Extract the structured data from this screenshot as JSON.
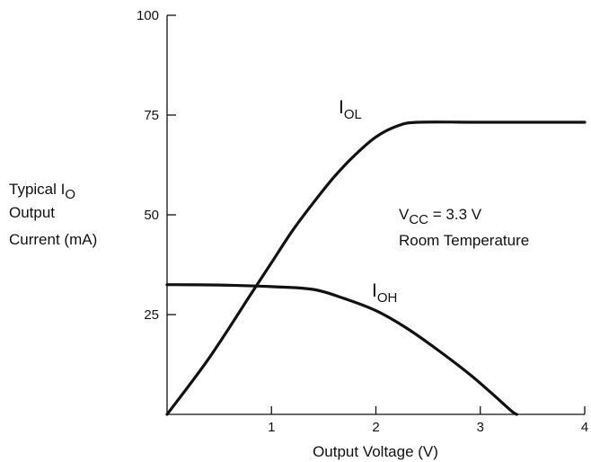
{
  "chart_data": {
    "type": "line",
    "xlabel": "Output Voltage (V)",
    "ylabel_lines": [
      {
        "main": "Typical I",
        "sub": "O"
      },
      {
        "main": "Output",
        "sub": ""
      },
      {
        "main": "Current (mA)",
        "sub": ""
      }
    ],
    "xlim": [
      0,
      4
    ],
    "ylim": [
      0,
      100
    ],
    "x_ticks": [
      1,
      2,
      3,
      4
    ],
    "y_ticks": [
      25,
      50,
      75,
      100
    ],
    "grid": false,
    "annotation": {
      "line1_main": "V",
      "line1_sub": "CC",
      "line1_rest": " = 3.3 V",
      "line2": "Room Temperature"
    },
    "series": [
      {
        "name": "I",
        "name_sub": "OL",
        "points": [
          [
            0,
            0
          ],
          [
            0.4,
            14
          ],
          [
            0.8,
            30
          ],
          [
            1.0,
            38
          ],
          [
            1.2,
            46
          ],
          [
            1.4,
            53
          ],
          [
            1.6,
            59.5
          ],
          [
            1.8,
            65
          ],
          [
            2.0,
            69.5
          ],
          [
            2.2,
            72.2
          ],
          [
            2.4,
            73.2
          ],
          [
            3.0,
            73.2
          ],
          [
            4.0,
            73.2
          ]
        ]
      },
      {
        "name": "I",
        "name_sub": "OH",
        "points": [
          [
            0,
            32.5
          ],
          [
            0.5,
            32.4
          ],
          [
            1.0,
            32.0
          ],
          [
            1.4,
            31.3
          ],
          [
            1.7,
            29.0
          ],
          [
            2.0,
            26.0
          ],
          [
            2.3,
            21.5
          ],
          [
            2.6,
            16.0
          ],
          [
            2.9,
            10.0
          ],
          [
            3.1,
            5.5
          ],
          [
            3.3,
            0.8
          ],
          [
            3.35,
            0
          ]
        ]
      }
    ]
  }
}
